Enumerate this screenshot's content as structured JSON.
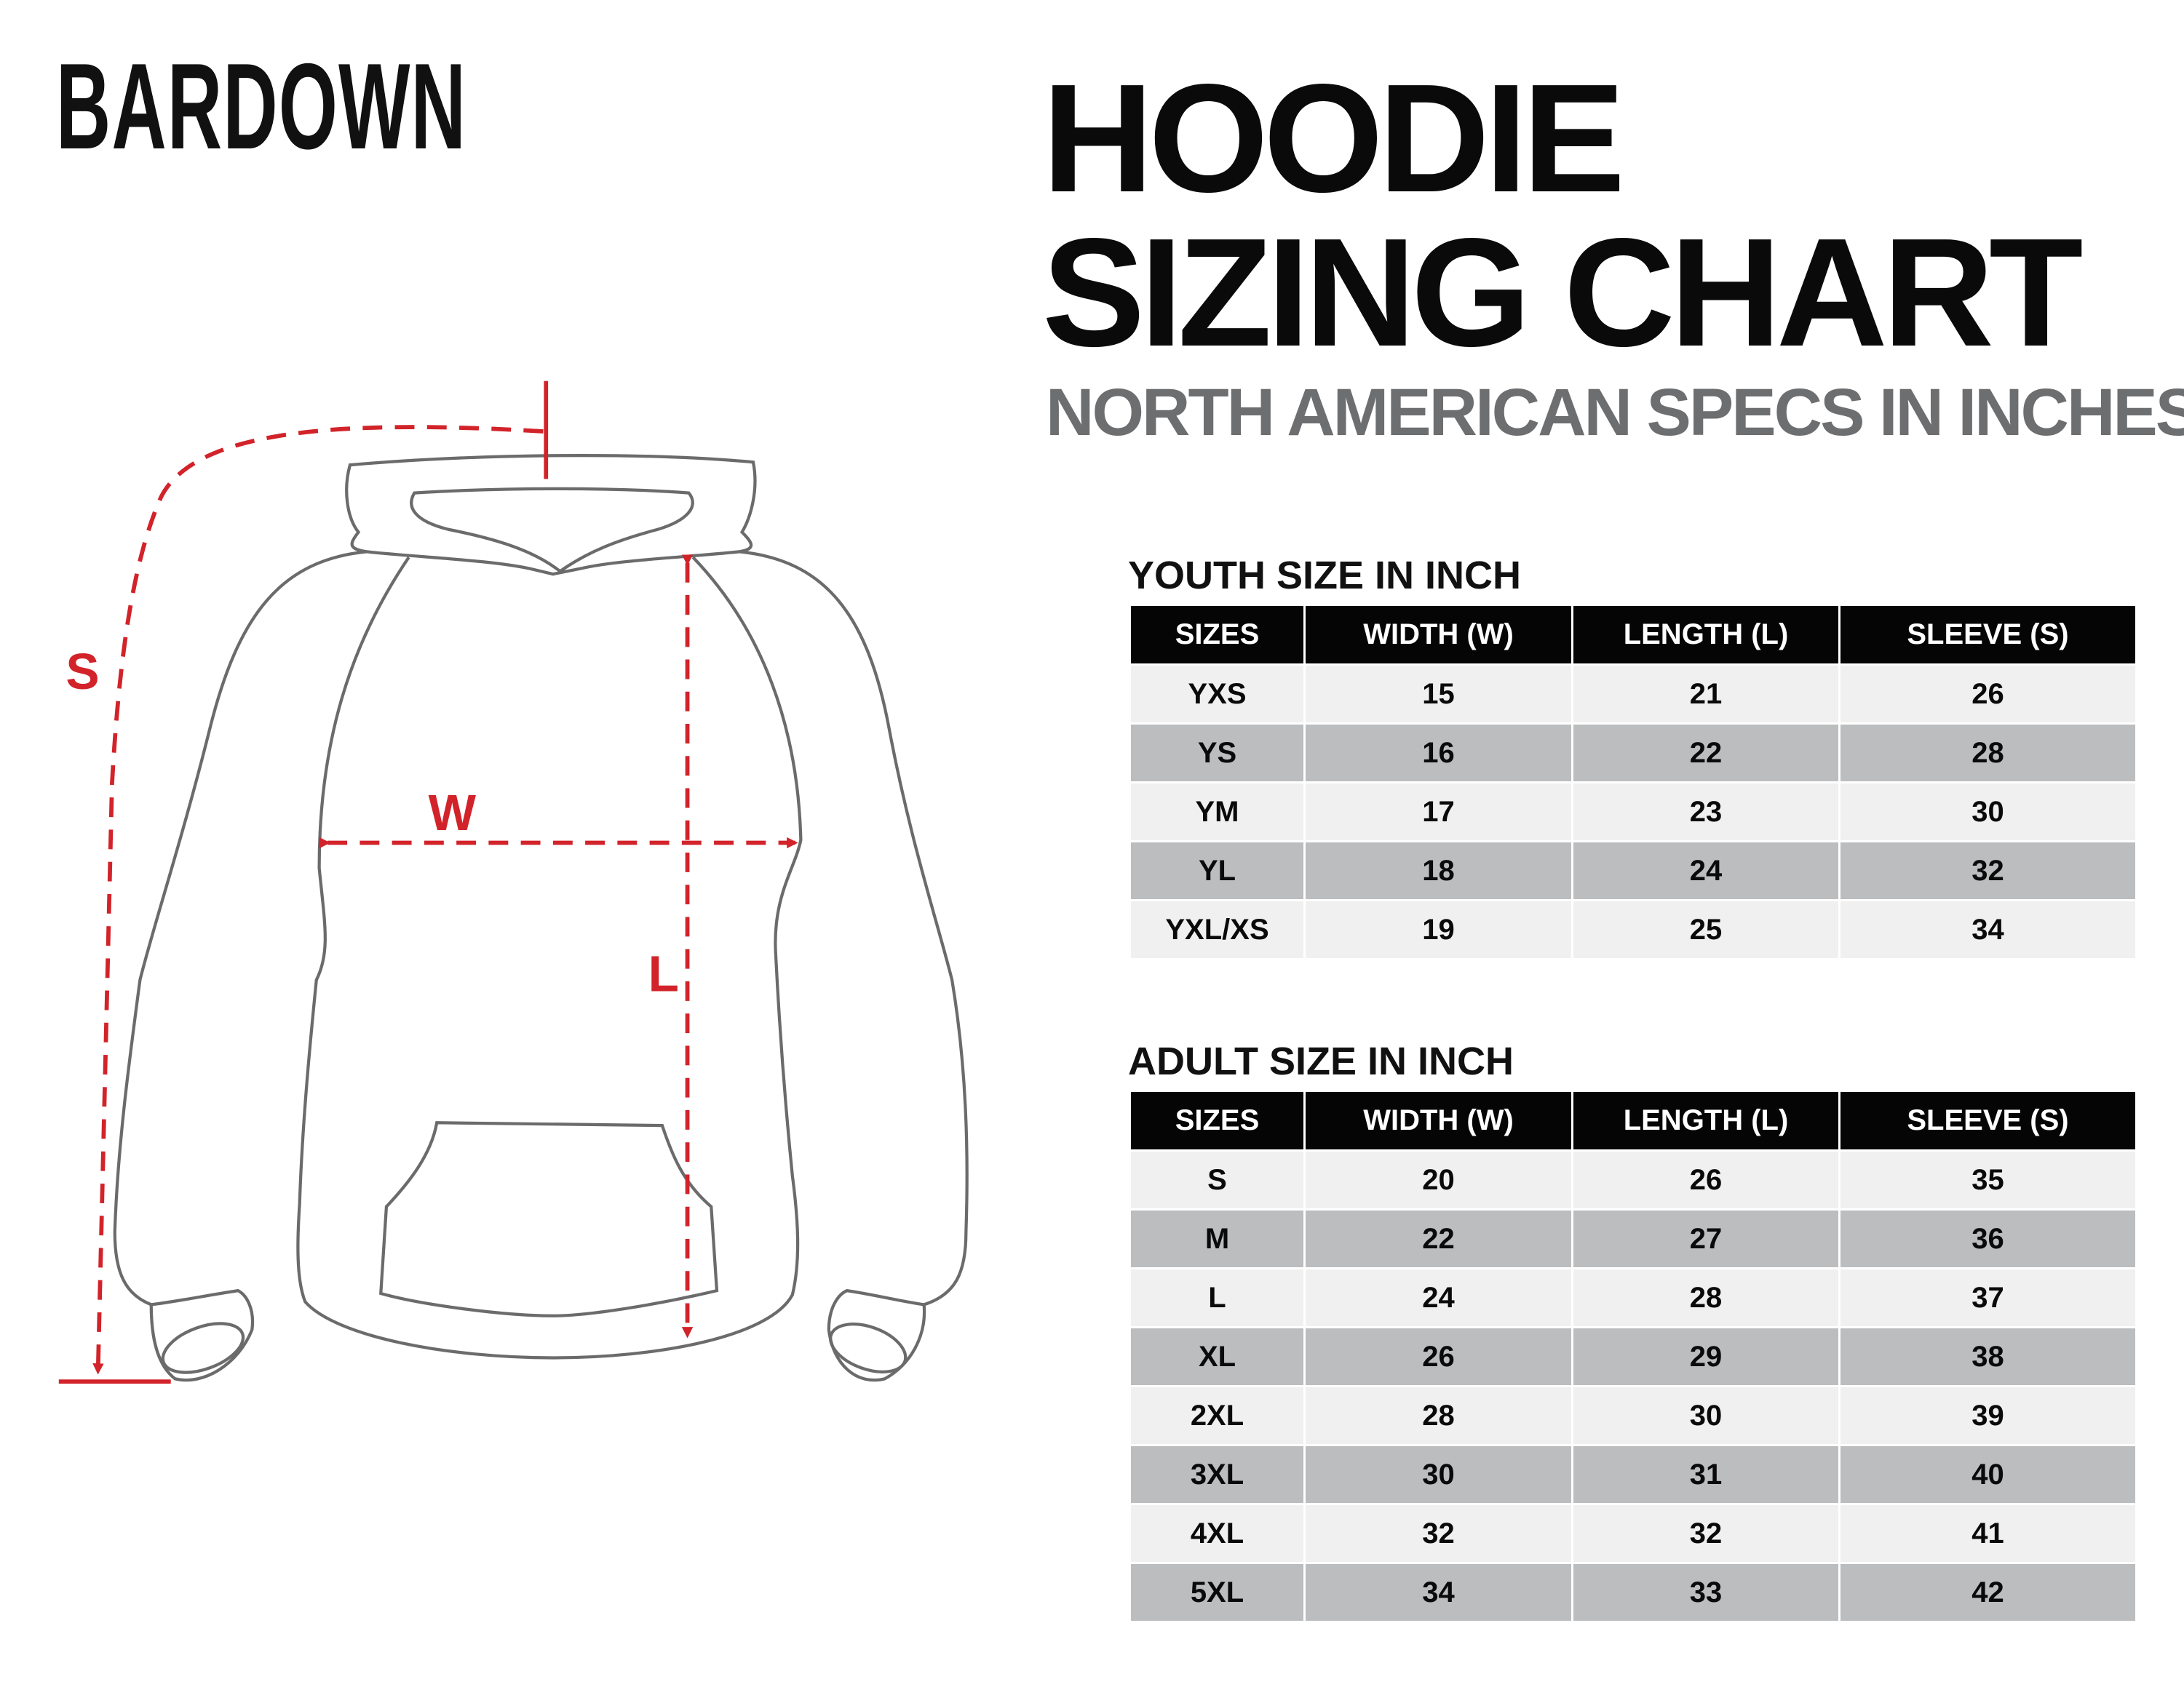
{
  "brand": "BARDOWN",
  "title_line1": "HOODIE",
  "title_line2": "SIZING CHART",
  "subtitle": "NORTH AMERICAN SPECS IN INCHES",
  "colors": {
    "accent_red": "#d2232a",
    "header_bg": "#050505",
    "row_light": "#f0f0f0",
    "row_dark": "#bcbdbf",
    "subtitle_gray": "#6d6e70"
  },
  "diagram": {
    "s_label": "S",
    "w_label": "W",
    "l_label": "L"
  },
  "youth": {
    "label": "YOUTH SIZE IN INCH",
    "headers": [
      "SIZES",
      "WIDTH (W)",
      "LENGTH (L)",
      "SLEEVE (S)"
    ],
    "rows": [
      [
        "YXS",
        "15",
        "21",
        "26"
      ],
      [
        "YS",
        "16",
        "22",
        "28"
      ],
      [
        "YM",
        "17",
        "23",
        "30"
      ],
      [
        "YL",
        "18",
        "24",
        "32"
      ],
      [
        "YXL/XS",
        "19",
        "25",
        "34"
      ]
    ]
  },
  "adult": {
    "label": "ADULT SIZE IN INCH",
    "headers": [
      "SIZES",
      "WIDTH (W)",
      "LENGTH (L)",
      "SLEEVE (S)"
    ],
    "rows": [
      [
        "S",
        "20",
        "26",
        "35"
      ],
      [
        "M",
        "22",
        "27",
        "36"
      ],
      [
        "L",
        "24",
        "28",
        "37"
      ],
      [
        "XL",
        "26",
        "29",
        "38"
      ],
      [
        "2XL",
        "28",
        "30",
        "39"
      ],
      [
        "3XL",
        "30",
        "31",
        "40"
      ],
      [
        "4XL",
        "32",
        "32",
        "41"
      ],
      [
        "5XL",
        "34",
        "33",
        "42"
      ]
    ]
  }
}
